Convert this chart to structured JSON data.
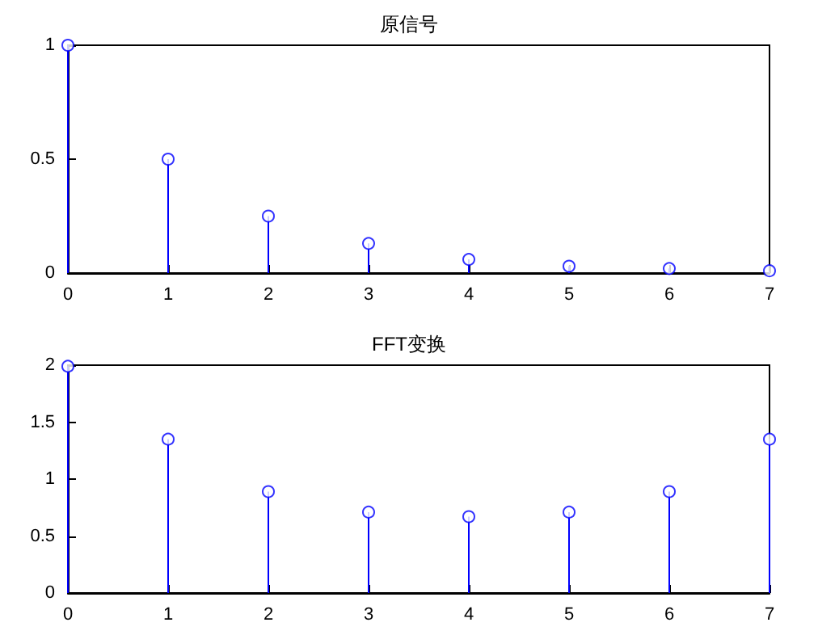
{
  "chart_data": [
    {
      "type": "lollipop",
      "title": "原信号",
      "x": [
        0,
        1,
        2,
        3,
        4,
        5,
        6,
        7
      ],
      "values": [
        1,
        0.5,
        0.25,
        0.13,
        0.06,
        0.03,
        0.02,
        0.01
      ],
      "color": "#0000ff",
      "xlim": [
        0,
        7
      ],
      "xticks": [
        0,
        1,
        2,
        3,
        4,
        5,
        6,
        7
      ],
      "ylim": [
        0,
        1
      ],
      "yticks": [
        0,
        0.5,
        1
      ],
      "marker": "circle"
    },
    {
      "type": "lollipop",
      "title": "FFT变换",
      "x": [
        0,
        1,
        2,
        3,
        4,
        5,
        6,
        7
      ],
      "values": [
        1.99,
        1.35,
        0.89,
        0.71,
        0.67,
        0.71,
        0.89,
        1.35
      ],
      "color": "#0000ff",
      "xlim": [
        0,
        7
      ],
      "xticks": [
        0,
        1,
        2,
        3,
        4,
        5,
        6,
        7
      ],
      "ylim": [
        0,
        2
      ],
      "yticks": [
        0,
        0.5,
        1,
        1.5,
        2
      ],
      "marker": "circle"
    }
  ]
}
